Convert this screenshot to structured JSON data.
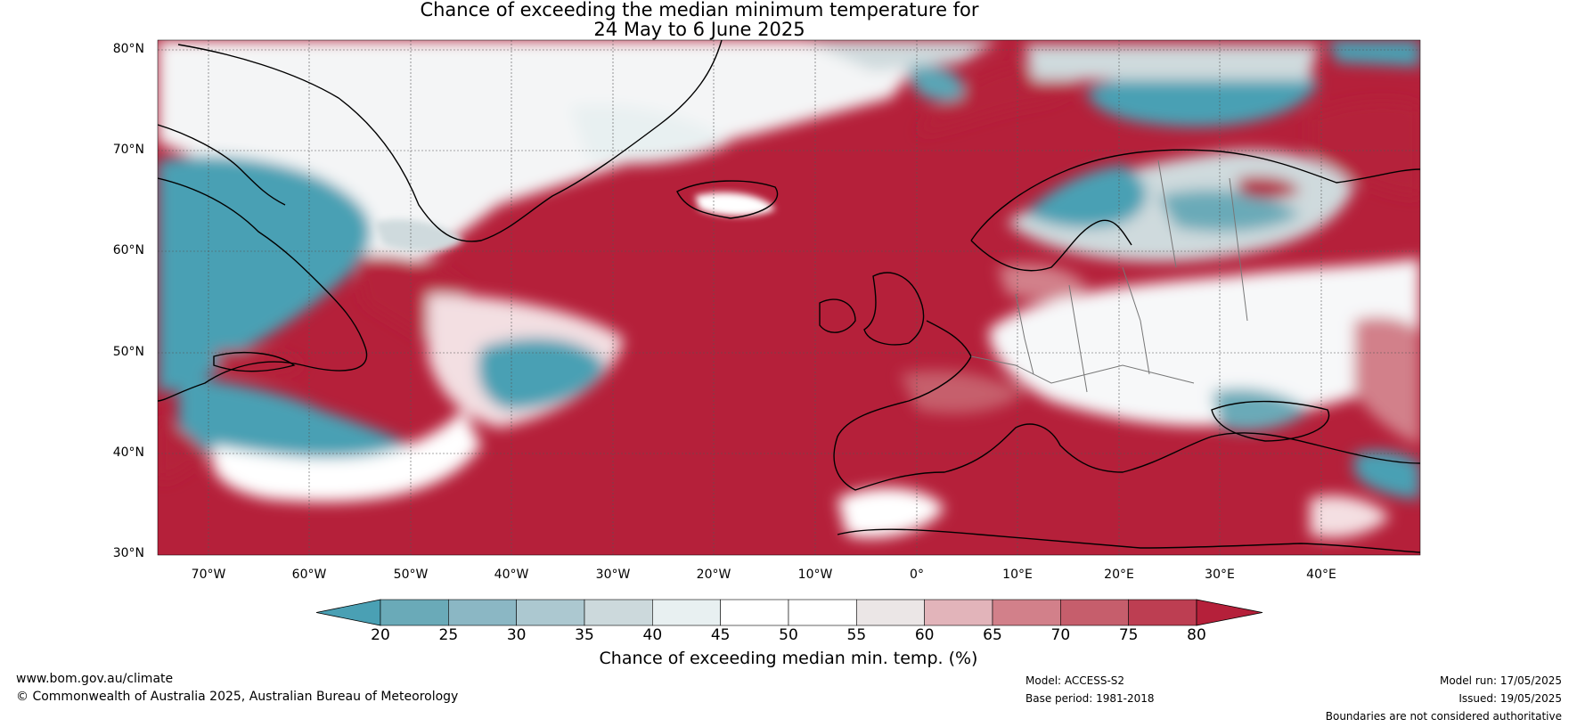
{
  "title": {
    "line1": "Chance of exceeding the median minimum temperature for",
    "line2": "24 May to 6 June 2025"
  },
  "map": {
    "lat_labels": [
      "80°N",
      "70°N",
      "60°N",
      "50°N",
      "40°N",
      "30°N"
    ],
    "lon_labels": [
      "70°W",
      "60°W",
      "50°W",
      "40°W",
      "30°W",
      "20°W",
      "10°W",
      "0°",
      "10°E",
      "20°E",
      "30°E",
      "40°E"
    ],
    "colors": {
      "ocean_red": "#b5203a",
      "land_white": "#ffffff",
      "teal": "#4aa0b4",
      "grey": "#e9eaeb"
    }
  },
  "colorbar": {
    "ticks": [
      "20",
      "25",
      "30",
      "35",
      "40",
      "45",
      "50",
      "55",
      "60",
      "65",
      "70",
      "75",
      "80"
    ],
    "colors": [
      "#4aa0b4",
      "#6aaab8",
      "#8bb7c4",
      "#acc8d0",
      "#ccd9dc",
      "#e8f0f1",
      "#ffffff",
      "#ffffff",
      "#ebe6e6",
      "#e2b4ba",
      "#d2808a",
      "#c65e6c",
      "#bd3e52",
      "#b5203a"
    ],
    "label": "Chance of exceeding median min. temp. (%)"
  },
  "footer": {
    "website": "www.bom.gov.au/climate",
    "copyright": "© Commonwealth of Australia 2025, Australian Bureau of Meteorology",
    "model": "Model: ACCESS-S2",
    "base_period": "Base period: 1981-2018",
    "model_run": "Model run: 17/05/2025",
    "issued": "Issued: 19/05/2025",
    "disclaimer": "Boundaries are not considered authoritative"
  }
}
